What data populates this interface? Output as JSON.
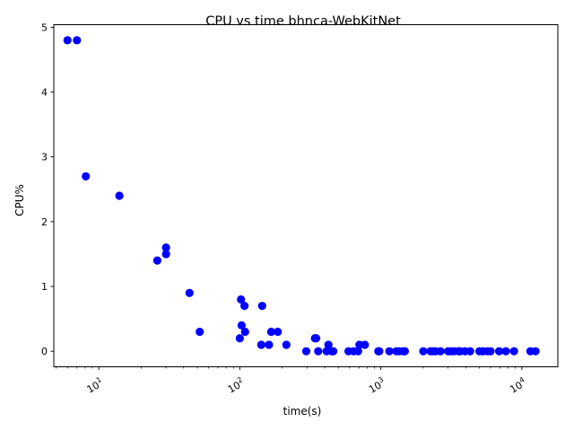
{
  "chart_data": {
    "type": "scatter",
    "title": "CPU vs time bhnca-WebKitNet",
    "xlabel": "time(s)",
    "ylabel": "CPU%",
    "xscale": "log",
    "xlim": [
      4.8,
      18000
    ],
    "ylim": [
      -0.24,
      5.04
    ],
    "grid": false,
    "marker_color": "#0000ff",
    "xticks": [
      {
        "value": 10,
        "base": "10",
        "exp": "1"
      },
      {
        "value": 100,
        "base": "10",
        "exp": "2"
      },
      {
        "value": 1000,
        "base": "10",
        "exp": "3"
      },
      {
        "value": 10000,
        "base": "10",
        "exp": "4"
      }
    ],
    "yticks": [
      {
        "value": 0,
        "label": "0"
      },
      {
        "value": 1,
        "label": "1"
      },
      {
        "value": 2,
        "label": "2"
      },
      {
        "value": 3,
        "label": "3"
      },
      {
        "value": 4,
        "label": "4"
      },
      {
        "value": 5,
        "label": "5"
      }
    ],
    "points": [
      {
        "x": 6.0,
        "y": 4.8
      },
      {
        "x": 7.0,
        "y": 4.8
      },
      {
        "x": 8.1,
        "y": 2.7
      },
      {
        "x": 14,
        "y": 2.4
      },
      {
        "x": 26,
        "y": 1.4
      },
      {
        "x": 30,
        "y": 1.6
      },
      {
        "x": 30,
        "y": 1.5
      },
      {
        "x": 44,
        "y": 0.9
      },
      {
        "x": 52,
        "y": 0.3
      },
      {
        "x": 100,
        "y": 0.2
      },
      {
        "x": 102,
        "y": 0.8
      },
      {
        "x": 103,
        "y": 0.4
      },
      {
        "x": 108,
        "y": 0.7
      },
      {
        "x": 109,
        "y": 0.3
      },
      {
        "x": 142,
        "y": 0.1
      },
      {
        "x": 144,
        "y": 0.7
      },
      {
        "x": 161,
        "y": 0.1
      },
      {
        "x": 167,
        "y": 0.3
      },
      {
        "x": 186,
        "y": 0.3
      },
      {
        "x": 214,
        "y": 0.1
      },
      {
        "x": 296,
        "y": 0.0
      },
      {
        "x": 341,
        "y": 0.2
      },
      {
        "x": 348,
        "y": 0.2
      },
      {
        "x": 360,
        "y": 0.0
      },
      {
        "x": 413,
        "y": 0.0
      },
      {
        "x": 425,
        "y": 0.1
      },
      {
        "x": 448,
        "y": 0.0
      },
      {
        "x": 460,
        "y": 0.0
      },
      {
        "x": 590,
        "y": 0.0
      },
      {
        "x": 640,
        "y": 0.0
      },
      {
        "x": 690,
        "y": 0.0
      },
      {
        "x": 705,
        "y": 0.1
      },
      {
        "x": 770,
        "y": 0.1
      },
      {
        "x": 960,
        "y": 0.0
      },
      {
        "x": 975,
        "y": 0.0
      },
      {
        "x": 1150,
        "y": 0.0
      },
      {
        "x": 1290,
        "y": 0.0
      },
      {
        "x": 1350,
        "y": 0.0
      },
      {
        "x": 1440,
        "y": 0.0
      },
      {
        "x": 1480,
        "y": 0.0
      },
      {
        "x": 2000,
        "y": 0.0
      },
      {
        "x": 2250,
        "y": 0.0
      },
      {
        "x": 2350,
        "y": 0.0
      },
      {
        "x": 2450,
        "y": 0.0
      },
      {
        "x": 2650,
        "y": 0.0
      },
      {
        "x": 3000,
        "y": 0.0
      },
      {
        "x": 3150,
        "y": 0.0
      },
      {
        "x": 3300,
        "y": 0.0
      },
      {
        "x": 3550,
        "y": 0.0
      },
      {
        "x": 3650,
        "y": 0.0
      },
      {
        "x": 3950,
        "y": 0.0
      },
      {
        "x": 4300,
        "y": 0.0
      },
      {
        "x": 5000,
        "y": 0.0
      },
      {
        "x": 5300,
        "y": 0.0
      },
      {
        "x": 5700,
        "y": 0.0
      },
      {
        "x": 6000,
        "y": 0.0
      },
      {
        "x": 6900,
        "y": 0.0
      },
      {
        "x": 7700,
        "y": 0.0
      },
      {
        "x": 8800,
        "y": 0.0
      },
      {
        "x": 11500,
        "y": 0.0
      },
      {
        "x": 12500,
        "y": 0.0
      }
    ]
  }
}
